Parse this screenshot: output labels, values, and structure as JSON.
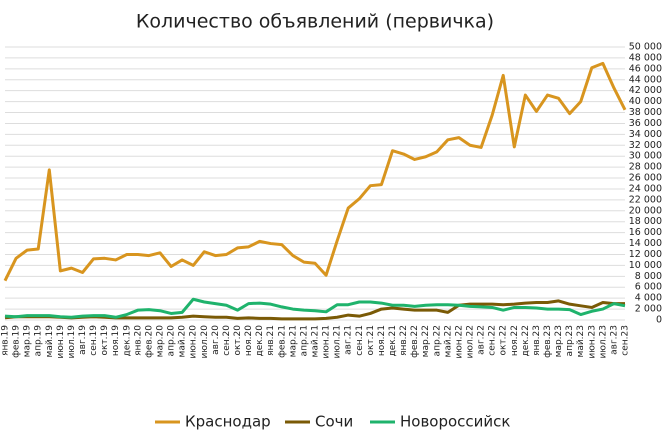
{
  "chart_data": {
    "type": "line",
    "title": "Количество объявлений (первичка)",
    "categories": [
      "янв.19",
      "фев.19",
      "мар.19",
      "апр.19",
      "май.19",
      "июн.19",
      "июл.19",
      "авг.19",
      "сен.19",
      "окт.19",
      "ноя.19",
      "дек.19",
      "янв.20",
      "фев.20",
      "мар.20",
      "апр.20",
      "май.20",
      "июн.20",
      "июл.20",
      "авг.20",
      "сен.20",
      "окт.20",
      "ноя.20",
      "дек.20",
      "янв.21",
      "фев.21",
      "мар.21",
      "апр.21",
      "май.21",
      "июн.21",
      "июл.21",
      "авг.21",
      "сен.21",
      "окт.21",
      "ноя.21",
      "дек.21",
      "янв.22",
      "фев.22",
      "мар.22",
      "апр.22",
      "май.22",
      "июн.22",
      "июл.22",
      "авг.22",
      "сен.22",
      "окт.22",
      "ноя.22",
      "дек.22",
      "янв.23",
      "фев.23",
      "мар.23",
      "апр.23",
      "май.23",
      "июн.23",
      "июл.23",
      "авг.23",
      "сен.23"
    ],
    "series": [
      {
        "name": "Краснодар",
        "color": "#d8951f",
        "values": [
          7200,
          11300,
          12800,
          13000,
          27500,
          9000,
          9500,
          8700,
          11200,
          11300,
          11000,
          12000,
          12000,
          11800,
          12300,
          9800,
          11000,
          10000,
          12500,
          11800,
          12000,
          13200,
          13400,
          14400,
          14000,
          13800,
          11800,
          10600,
          10400,
          8200,
          14500,
          20500,
          22200,
          24600,
          24800,
          31000,
          30400,
          29400,
          29900,
          30800,
          33000,
          33400,
          32000,
          31600,
          37500,
          44800,
          31700,
          41200,
          38200,
          41200,
          40600,
          37800,
          40000,
          46200,
          47000,
          42500,
          38500
        ]
      },
      {
        "name": "Сочи",
        "color": "#7a5a06",
        "values": [
          400,
          600,
          600,
          600,
          600,
          500,
          400,
          500,
          600,
          500,
          400,
          400,
          400,
          400,
          400,
          400,
          500,
          700,
          600,
          500,
          500,
          300,
          400,
          300,
          300,
          200,
          200,
          200,
          200,
          300,
          500,
          900,
          700,
          1200,
          2000,
          2200,
          2000,
          1800,
          1800,
          1800,
          1400,
          2700,
          2900,
          2900,
          2900,
          2800,
          2900,
          3100,
          3200,
          3200,
          3500,
          2900,
          2600,
          2300,
          3200,
          3000,
          3000
        ]
      },
      {
        "name": "Новороссийск",
        "color": "#1fb36c",
        "values": [
          700,
          600,
          800,
          800,
          800,
          600,
          500,
          700,
          800,
          800,
          500,
          1000,
          1800,
          1900,
          1700,
          1200,
          1400,
          3800,
          3300,
          3000,
          2700,
          1800,
          3000,
          3100,
          2900,
          2400,
          2000,
          1800,
          1700,
          1500,
          2800,
          2800,
          3300,
          3300,
          3100,
          2700,
          2700,
          2500,
          2700,
          2800,
          2800,
          2700,
          2500,
          2400,
          2300,
          1800,
          2300,
          2300,
          2200,
          2000,
          2000,
          1900,
          1000,
          1600,
          2000,
          3000,
          2600
        ]
      }
    ],
    "ylim": [
      0,
      50000
    ],
    "yticks": [
      0,
      {
        "value": 2000,
        "label": "2 000"
      },
      {
        "value": 4000,
        "label": "4 000"
      },
      {
        "value": 6000,
        "label": "6 000"
      },
      {
        "value": 8000,
        "label": "8 000"
      },
      {
        "value": 10000,
        "label": "10 000"
      },
      {
        "value": 12000,
        "label": "12 000"
      },
      {
        "value": 14000,
        "label": "14 000"
      },
      {
        "value": 16000,
        "label": "16 000"
      },
      {
        "value": 18000,
        "label": "18 000"
      },
      {
        "value": 20000,
        "label": "20 000"
      },
      {
        "value": 22000,
        "label": "22 000"
      },
      {
        "value": 24000,
        "label": "24 000"
      },
      {
        "value": 26000,
        "label": "26 000"
      },
      {
        "value": 28000,
        "label": "28 000"
      },
      {
        "value": 30000,
        "label": "30 000"
      },
      {
        "value": 32000,
        "label": "32 000"
      },
      {
        "value": 34000,
        "label": "34 000"
      },
      {
        "value": 36000,
        "label": "36 000"
      },
      {
        "value": 38000,
        "label": "38 000"
      },
      {
        "value": 40000,
        "label": "40 000"
      },
      {
        "value": 42000,
        "label": "42 000"
      },
      {
        "value": 44000,
        "label": "44 000"
      },
      {
        "value": 46000,
        "label": "46 000"
      },
      {
        "value": 48000,
        "label": "48 000"
      },
      {
        "value": 50000,
        "label": "50 000"
      }
    ],
    "grid": true
  }
}
